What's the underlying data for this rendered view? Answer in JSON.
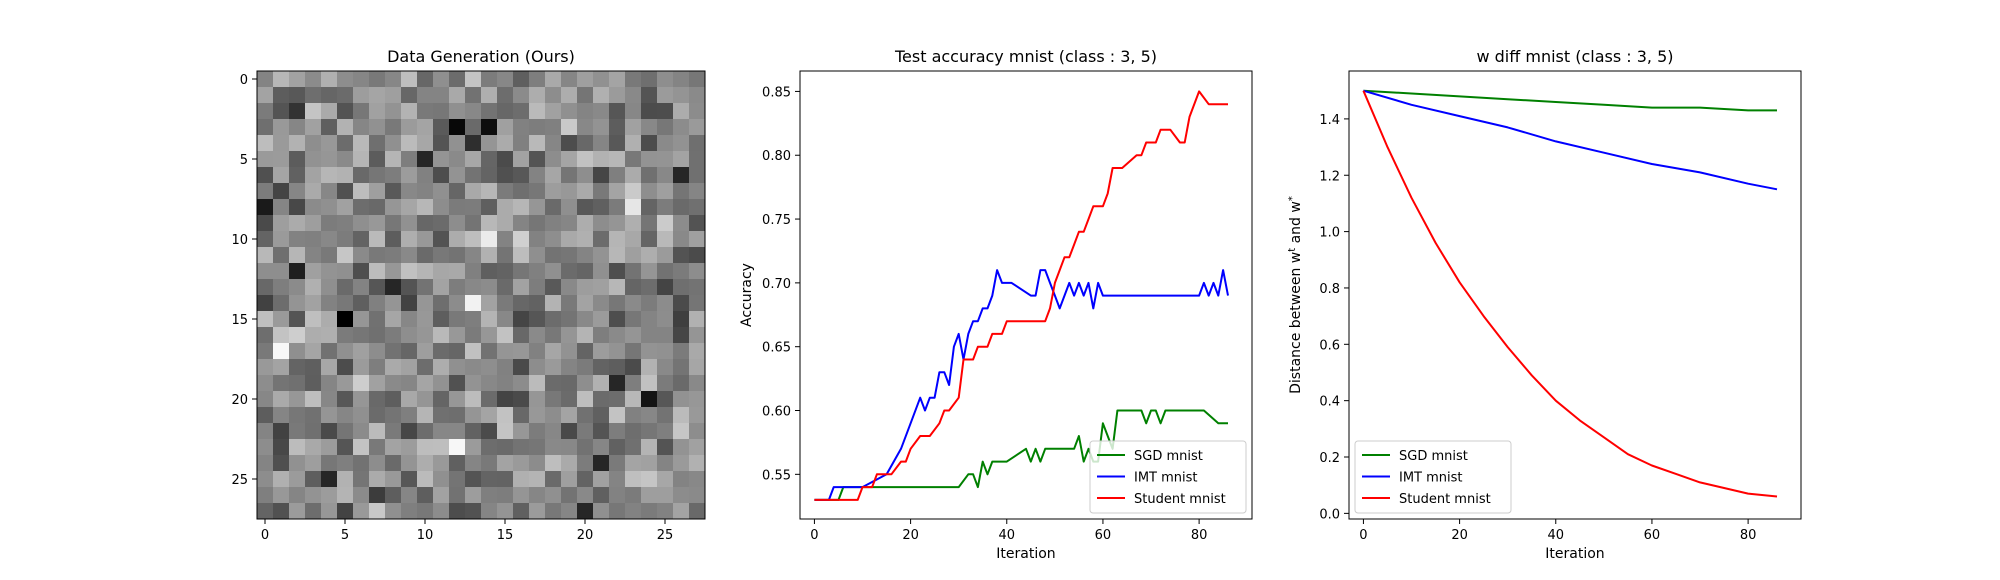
{
  "chart_data": [
    {
      "type": "heatmap",
      "title": "Data Generation (Ours)",
      "colormap": "gray",
      "rows": 28,
      "cols": 28,
      "vmin": 0,
      "vmax": 1,
      "xticks": [
        0,
        5,
        10,
        15,
        20,
        25
      ],
      "yticks": [
        0,
        5,
        10,
        15,
        20,
        25
      ],
      "grid": false,
      "dark_cells": [
        [
          3,
          12,
          0.03
        ],
        [
          3,
          14,
          0.05
        ],
        [
          15,
          5,
          0.0
        ],
        [
          14,
          13,
          0.95
        ],
        [
          17,
          1,
          0.97
        ],
        [
          23,
          12,
          0.97
        ],
        [
          20,
          24,
          0.08
        ],
        [
          8,
          0,
          0.1
        ],
        [
          8,
          23,
          0.9
        ],
        [
          10,
          14,
          0.92
        ],
        [
          5,
          10,
          0.15
        ],
        [
          12,
          2,
          0.12
        ],
        [
          6,
          26,
          0.15
        ],
        [
          4,
          13,
          0.18
        ],
        [
          2,
          2,
          0.2
        ],
        [
          13,
          8,
          0.15
        ],
        [
          19,
          22,
          0.15
        ],
        [
          25,
          4,
          0.15
        ],
        [
          24,
          21,
          0.15
        ],
        [
          27,
          20,
          0.15
        ]
      ]
    },
    {
      "type": "line",
      "title": "Test accuracy mnist (class : 3, 5)",
      "xlabel": "Iteration",
      "ylabel": "Accuracy",
      "xlim": [
        -3,
        91
      ],
      "ylim": [
        0.515,
        0.866
      ],
      "xticks": [
        "0",
        "20",
        "40",
        "60",
        "80"
      ],
      "yticks": [
        "0.55",
        "0.60",
        "0.65",
        "0.70",
        "0.75",
        "0.80",
        "0.85"
      ],
      "grid": false,
      "legend": "lower right",
      "series": [
        {
          "name": "SGD mnist",
          "color": "#008000",
          "x": [
            0,
            5,
            6,
            8,
            9,
            30,
            32,
            33,
            34,
            35,
            36,
            37,
            38,
            40,
            44,
            45,
            46,
            47,
            48,
            49,
            50,
            52,
            53,
            54,
            55,
            56,
            57,
            58,
            59,
            60,
            61,
            62,
            63,
            68,
            69,
            70,
            71,
            72,
            73,
            74,
            81,
            84,
            86
          ],
          "y": [
            0.53,
            0.53,
            0.54,
            0.54,
            0.54,
            0.54,
            0.55,
            0.55,
            0.54,
            0.56,
            0.55,
            0.56,
            0.56,
            0.56,
            0.57,
            0.56,
            0.57,
            0.56,
            0.57,
            0.57,
            0.57,
            0.57,
            0.57,
            0.57,
            0.58,
            0.56,
            0.57,
            0.56,
            0.56,
            0.59,
            0.58,
            0.57,
            0.6,
            0.6,
            0.59,
            0.6,
            0.6,
            0.59,
            0.6,
            0.6,
            0.6,
            0.59,
            0.59
          ]
        },
        {
          "name": "IMT mnist",
          "color": "#0000ff",
          "x": [
            0,
            3,
            4,
            10,
            15,
            18,
            20,
            22,
            23,
            24,
            25,
            26,
            27,
            28,
            29,
            30,
            31,
            32,
            33,
            34,
            35,
            36,
            37,
            38,
            39,
            40,
            41,
            45,
            46,
            47,
            48,
            49,
            50,
            51,
            52,
            53,
            54,
            55,
            56,
            57,
            58,
            59,
            60,
            61,
            62,
            63,
            70,
            80,
            81,
            82,
            83,
            84,
            85,
            86
          ],
          "y": [
            0.53,
            0.53,
            0.54,
            0.54,
            0.55,
            0.57,
            0.59,
            0.61,
            0.6,
            0.61,
            0.61,
            0.63,
            0.63,
            0.62,
            0.65,
            0.66,
            0.64,
            0.66,
            0.67,
            0.67,
            0.68,
            0.68,
            0.69,
            0.71,
            0.7,
            0.7,
            0.7,
            0.69,
            0.69,
            0.71,
            0.71,
            0.7,
            0.69,
            0.68,
            0.69,
            0.7,
            0.69,
            0.7,
            0.69,
            0.7,
            0.68,
            0.7,
            0.69,
            0.69,
            0.69,
            0.69,
            0.69,
            0.69,
            0.7,
            0.69,
            0.7,
            0.69,
            0.71,
            0.69
          ]
        },
        {
          "name": "Student mnist",
          "color": "#ff0000",
          "x": [
            0,
            9,
            10,
            12,
            13,
            14,
            16,
            18,
            19,
            20,
            22,
            24,
            26,
            27,
            28,
            30,
            31,
            32,
            33,
            34,
            36,
            37,
            39,
            40,
            45,
            47,
            48,
            49,
            50,
            51,
            52,
            53,
            54,
            55,
            56,
            57,
            58,
            59,
            60,
            61,
            62,
            63,
            64,
            67,
            68,
            69,
            70,
            71,
            72,
            74,
            76,
            77,
            78,
            80,
            82,
            84,
            86
          ],
          "y": [
            0.53,
            0.53,
            0.54,
            0.54,
            0.55,
            0.55,
            0.55,
            0.56,
            0.56,
            0.57,
            0.58,
            0.58,
            0.59,
            0.6,
            0.6,
            0.61,
            0.64,
            0.64,
            0.64,
            0.65,
            0.65,
            0.66,
            0.66,
            0.67,
            0.67,
            0.67,
            0.67,
            0.68,
            0.7,
            0.71,
            0.72,
            0.72,
            0.73,
            0.74,
            0.74,
            0.75,
            0.76,
            0.76,
            0.76,
            0.77,
            0.79,
            0.79,
            0.79,
            0.8,
            0.8,
            0.81,
            0.81,
            0.81,
            0.82,
            0.82,
            0.81,
            0.81,
            0.83,
            0.85,
            0.84,
            0.84,
            0.84
          ]
        }
      ]
    },
    {
      "type": "line",
      "title": "w diff mnist (class : 3, 5)",
      "xlabel": "Iteration",
      "ylabel": "Distance between w^t and w^*",
      "xlim": [
        -3,
        91
      ],
      "ylim": [
        -0.02,
        1.57
      ],
      "xticks": [
        "0",
        "20",
        "40",
        "60",
        "80"
      ],
      "yticks": [
        "0.0",
        "0.2",
        "0.4",
        "0.6",
        "0.8",
        "1.0",
        "1.2",
        "1.4"
      ],
      "grid": false,
      "legend": "lower left",
      "series": [
        {
          "name": "SGD mnist",
          "color": "#008000",
          "x": [
            0,
            10,
            20,
            30,
            40,
            50,
            60,
            70,
            80,
            86
          ],
          "y": [
            1.5,
            1.49,
            1.48,
            1.47,
            1.46,
            1.45,
            1.44,
            1.44,
            1.43,
            1.43
          ]
        },
        {
          "name": "IMT mnist",
          "color": "#0000ff",
          "x": [
            0,
            10,
            20,
            30,
            40,
            50,
            60,
            70,
            80,
            86
          ],
          "y": [
            1.5,
            1.45,
            1.41,
            1.37,
            1.32,
            1.28,
            1.24,
            1.21,
            1.17,
            1.15
          ]
        },
        {
          "name": "Student mnist",
          "color": "#ff0000",
          "x": [
            0,
            5,
            10,
            15,
            20,
            25,
            30,
            35,
            40,
            45,
            50,
            55,
            60,
            65,
            70,
            75,
            80,
            86
          ],
          "y": [
            1.5,
            1.3,
            1.12,
            0.96,
            0.82,
            0.7,
            0.59,
            0.49,
            0.4,
            0.33,
            0.27,
            0.21,
            0.17,
            0.14,
            0.11,
            0.09,
            0.07,
            0.06
          ]
        }
      ]
    }
  ]
}
